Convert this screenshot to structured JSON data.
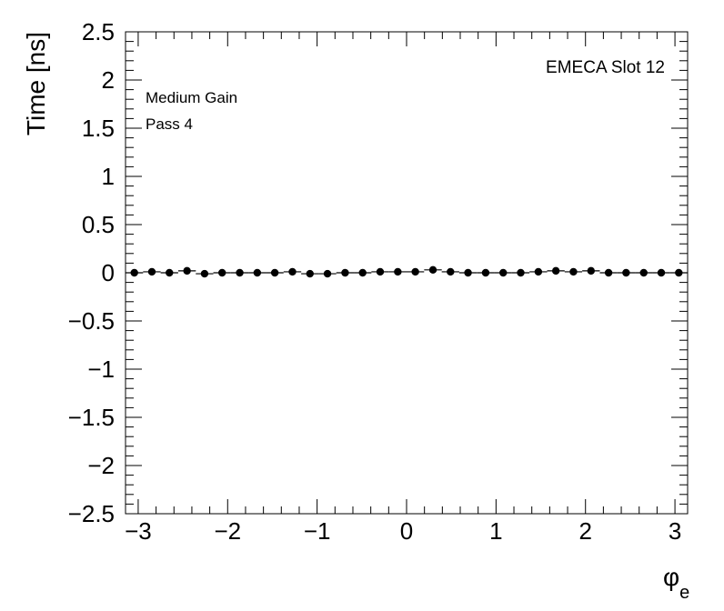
{
  "chart_data": {
    "type": "scatter",
    "title": "",
    "xlabel": "φ",
    "xlabel_sub": "e",
    "ylabel": "Time [ns]",
    "xlim": [
      -3.1416,
      3.1416
    ],
    "ylim": [
      -2.5,
      2.5
    ],
    "xticks": [
      -3,
      -2,
      -1,
      0,
      1,
      2,
      3
    ],
    "xtick_labels": [
      "−3",
      "−2",
      "−1",
      "0",
      "1",
      "2",
      "3"
    ],
    "yticks": [
      2.5,
      2,
      1.5,
      1,
      0.5,
      0,
      -0.5,
      -1,
      -1.5,
      -2,
      -2.5
    ],
    "ytick_labels": [
      "2.5",
      "2",
      "1.5",
      "1",
      "0.5",
      "0",
      "−0.5",
      "−1",
      "−1.5",
      "−2",
      "−2.5"
    ],
    "annotations": {
      "gain": "Medium Gain",
      "pass": "Pass 4",
      "slot": "EMECA Slot 12"
    },
    "marker_color": "#000000",
    "grid": false,
    "series": [
      {
        "x": [
          -3.043,
          -2.847,
          -2.651,
          -2.454,
          -2.258,
          -2.062,
          -1.865,
          -1.669,
          -1.473,
          -1.276,
          -1.08,
          -0.884,
          -0.687,
          -0.491,
          -0.295,
          -0.098,
          0.098,
          0.295,
          0.491,
          0.687,
          0.884,
          1.08,
          1.276,
          1.473,
          1.669,
          1.865,
          2.062,
          2.258,
          2.454,
          2.651,
          2.847,
          3.043
        ],
        "y": [
          0.0,
          0.01,
          0.0,
          0.02,
          -0.01,
          0.0,
          0.0,
          0.0,
          0.0,
          0.01,
          -0.01,
          -0.01,
          0.0,
          0.0,
          0.01,
          0.01,
          0.01,
          0.03,
          0.01,
          0.0,
          0.0,
          0.0,
          0.0,
          0.01,
          0.02,
          0.01,
          0.02,
          0.0,
          0.0,
          0.0,
          0.0,
          0.0
        ]
      }
    ]
  }
}
